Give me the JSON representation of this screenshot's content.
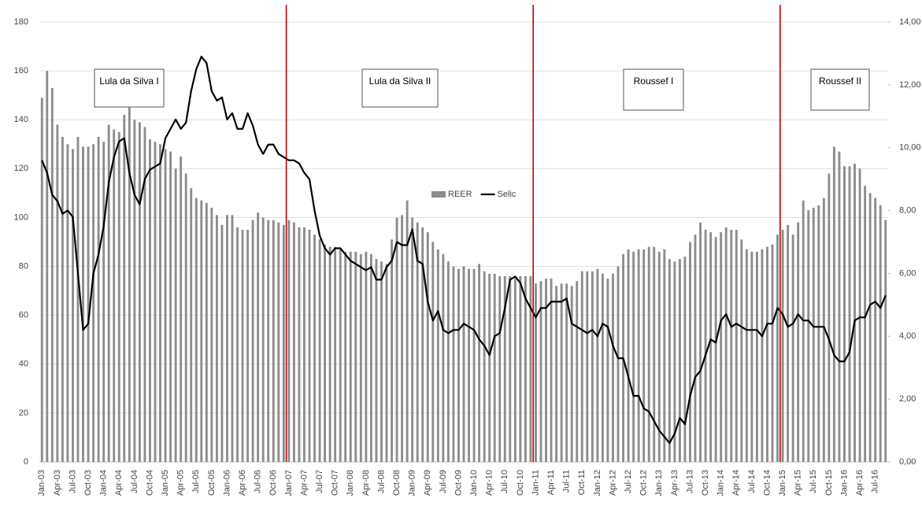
{
  "chart_data": {
    "type": "bar",
    "categories": [
      "Jan-03",
      null,
      null,
      "Apr-03",
      null,
      null,
      "Jul-03",
      null,
      null,
      "Oct-03",
      null,
      null,
      "Jan-04",
      null,
      null,
      "Apr-04",
      null,
      null,
      "Jul-04",
      null,
      null,
      "Oct-04",
      null,
      null,
      "Jan-05",
      null,
      null,
      "Apr-05",
      null,
      null,
      "Jul-05",
      null,
      null,
      "Oct-05",
      null,
      null,
      "Jan-06",
      null,
      null,
      "Apr-06",
      null,
      null,
      "Jul-06",
      null,
      null,
      "Oct-06",
      null,
      null,
      "Jan-07",
      null,
      null,
      "Apr-07",
      null,
      null,
      "Jul-07",
      null,
      null,
      "Oct-07",
      null,
      null,
      "Jan-08",
      null,
      null,
      "Apr-08",
      null,
      null,
      "Jul-08",
      null,
      null,
      "Oct-08",
      null,
      null,
      "Jan-09",
      null,
      null,
      "Apr-09",
      null,
      null,
      "Jul-09",
      null,
      null,
      "Oct-09",
      null,
      null,
      "Jan-10",
      null,
      null,
      "Apr-10",
      null,
      null,
      "Jul-10",
      null,
      null,
      "Oct-10",
      null,
      null,
      "Jan-11",
      null,
      null,
      "Apr-11",
      null,
      null,
      "Jul-11",
      null,
      null,
      "Oct-11",
      null,
      null,
      "Jan-12",
      null,
      null,
      "Apr-12",
      null,
      null,
      "Jul-12",
      null,
      null,
      "Oct-12",
      null,
      null,
      "Jan-13",
      null,
      null,
      "Apr-13",
      null,
      null,
      "Jul-13",
      null,
      null,
      "Oct-13",
      null,
      null,
      "Jan-14",
      null,
      null,
      "Apr-14",
      null,
      null,
      "Jul-14",
      null,
      null,
      "Oct-14",
      null,
      null,
      "Jan-15",
      null,
      null,
      "Apr-15",
      null,
      null,
      "Jul-15",
      null,
      null,
      "Oct-15",
      null,
      null,
      "Jan-16",
      null,
      null,
      "Apr-16",
      null,
      null,
      "Jul-16",
      null,
      null
    ],
    "series": [
      {
        "name": "REER",
        "type": "bar",
        "color": "#8c8c8c",
        "values": [
          149,
          160,
          153,
          138,
          133,
          130,
          128,
          133,
          129,
          129,
          130,
          133,
          131,
          138,
          136,
          135,
          142,
          145,
          140,
          139,
          137,
          132,
          131,
          130,
          128,
          127,
          120,
          125,
          118,
          112,
          108,
          107,
          106,
          104,
          101,
          97,
          101,
          101,
          96,
          95,
          95,
          99,
          102,
          100,
          99,
          99,
          98,
          97,
          99,
          98,
          96,
          96,
          95,
          93,
          91,
          89,
          88,
          88,
          87,
          86,
          86,
          86,
          85,
          86,
          85,
          83,
          82,
          81,
          91,
          100,
          101,
          107,
          100,
          98,
          96,
          94,
          90,
          87,
          85,
          82,
          80,
          79,
          80,
          79,
          79,
          81,
          78,
          77,
          77,
          76,
          76,
          76,
          75,
          76,
          76,
          76,
          73,
          74,
          75,
          75,
          72,
          73,
          73,
          72,
          74,
          78,
          78,
          78,
          79,
          77,
          75,
          77,
          80,
          85,
          87,
          86,
          87,
          87,
          88,
          88,
          86,
          87,
          83,
          82,
          83,
          84,
          90,
          93,
          98,
          95,
          94,
          92,
          94,
          96,
          95,
          95,
          91,
          87,
          86,
          86,
          87,
          88,
          89,
          93,
          95,
          97,
          93,
          98,
          107,
          103,
          104,
          105,
          108,
          118,
          129,
          127,
          121,
          121,
          122,
          120,
          113,
          110,
          108,
          105,
          99
        ]
      },
      {
        "name": "Selic",
        "type": "line",
        "axis": "y2",
        "color": "#000000",
        "values": [
          9.6,
          9.2,
          8.5,
          8.3,
          7.9,
          8.0,
          7.8,
          6.0,
          4.2,
          4.4,
          6.0,
          6.6,
          7.5,
          8.9,
          9.7,
          10.2,
          10.3,
          9.2,
          8.5,
          8.2,
          9.0,
          9.3,
          9.4,
          9.5,
          10.3,
          10.6,
          10.9,
          10.6,
          10.8,
          11.8,
          12.5,
          12.9,
          12.7,
          11.8,
          11.5,
          11.6,
          10.9,
          11.1,
          10.6,
          10.6,
          11.1,
          10.7,
          10.1,
          9.8,
          10.1,
          10.1,
          9.8,
          9.7,
          9.6,
          9.6,
          9.5,
          9.2,
          9.0,
          8.0,
          7.2,
          6.8,
          6.6,
          6.8,
          6.8,
          6.6,
          6.4,
          6.3,
          6.2,
          6.1,
          6.2,
          5.8,
          5.8,
          6.2,
          6.4,
          7.0,
          6.9,
          6.9,
          7.4,
          6.4,
          6.3,
          5.1,
          4.5,
          4.8,
          4.2,
          4.1,
          4.2,
          4.2,
          4.4,
          4.3,
          4.2,
          3.9,
          3.7,
          3.4,
          4.0,
          4.1,
          4.9,
          5.8,
          5.9,
          5.7,
          5.2,
          4.9,
          4.6,
          4.9,
          4.9,
          5.1,
          5.1,
          5.1,
          5.2,
          4.4,
          4.3,
          4.2,
          4.1,
          4.2,
          4.0,
          4.4,
          4.3,
          3.7,
          3.3,
          3.3,
          2.7,
          2.1,
          2.1,
          1.7,
          1.6,
          1.3,
          1.0,
          0.8,
          0.6,
          0.9,
          1.4,
          1.2,
          2.1,
          2.7,
          2.9,
          3.4,
          3.9,
          3.8,
          4.5,
          4.7,
          4.3,
          4.4,
          4.3,
          4.2,
          4.2,
          4.2,
          4.0,
          4.4,
          4.4,
          4.9,
          4.7,
          4.3,
          4.4,
          4.7,
          4.5,
          4.5,
          4.3,
          4.3,
          4.3,
          3.9,
          3.4,
          3.2,
          3.2,
          3.5,
          4.5,
          4.6,
          4.6,
          5.0,
          5.1,
          4.9,
          5.3
        ]
      }
    ],
    "ylim": [
      0,
      180
    ],
    "yticks": [
      0,
      20,
      40,
      60,
      80,
      100,
      120,
      140,
      160,
      180
    ],
    "y2lim": [
      0,
      14
    ],
    "y2ticks": [
      {
        "value": 0,
        "label": "0,00"
      },
      {
        "value": 2,
        "label": "2,00"
      },
      {
        "value": 4,
        "label": "4,00"
      },
      {
        "value": 6,
        "label": "6,00"
      },
      {
        "value": 8,
        "label": "8,00"
      },
      {
        "value": 10,
        "label": "10,00"
      },
      {
        "value": 12,
        "label": "12,00"
      },
      {
        "value": 14,
        "label": "14,00"
      }
    ],
    "grid": true,
    "period_lines": [
      47.5,
      95.5,
      143.5
    ],
    "period_line_color": "#c00000",
    "annotations": [
      "Lula da Silva I",
      "Lula da Silva II",
      "Roussef I",
      "Roussef II"
    ]
  }
}
